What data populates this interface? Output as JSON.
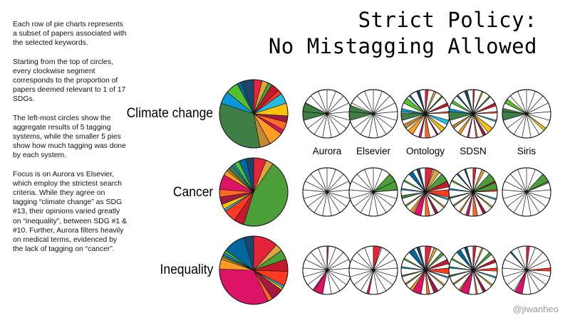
{
  "title_lines": [
    "Strict Policy:",
    "No Mistagging Allowed"
  ],
  "description": [
    "Each row of pie charts represents a subset of papers associated with the selected keywords.",
    "Starting from the top of circles, every clockwise segment corresponds to the proportion of papers deemed relevant to 1 of 17 SDGs.",
    "The left-most circles show the aggregate results of 5 tagging systems, while the smaller 5 pies show how much tagging was done by each system.",
    "Focus is on Aurora vs Elsevier, which employ the strictest search criteria.  While they agree on tagging “climate change” as SDG #13, their opinions varied greatly on “inequality”, between SDG #1 & #10. Further, Aurora filters heavily on medical terms, evidenced by the lack of tagging on “cancer”."
  ],
  "credit": "@jiwanheo",
  "chart_data": {
    "type": "pie",
    "sdgs": [
      1,
      2,
      3,
      4,
      5,
      6,
      7,
      8,
      9,
      10,
      11,
      12,
      13,
      14,
      15,
      16,
      17
    ],
    "sdg_colors": [
      "#e5243b",
      "#dda63a",
      "#4c9f38",
      "#c5192d",
      "#ff3a21",
      "#26bde2",
      "#fcc30b",
      "#a21942",
      "#fd6925",
      "#dd1367",
      "#fd9d24",
      "#bf8b2e",
      "#3f7e44",
      "#0a97d9",
      "#56c02b",
      "#00689d",
      "#19486a"
    ],
    "systems": [
      "Aurora",
      "Elsevier",
      "Ontology",
      "SDSN",
      "Siris"
    ],
    "rows": [
      {
        "keyword": "Climate change",
        "aggregate": [
          0.04,
          0.03,
          0.02,
          0.04,
          0.02,
          0.05,
          0.06,
          0.03,
          0.04,
          0.02,
          0.07,
          0.05,
          0.33,
          0.06,
          0.06,
          0.02,
          0.06
        ],
        "by_system": {
          "Aurora": [
            0,
            0,
            0,
            0,
            0,
            0,
            0,
            0,
            0,
            0,
            0,
            0,
            0.12,
            0,
            0,
            0,
            0
          ],
          "Elsevier": [
            0,
            0,
            0,
            0,
            0,
            0,
            0,
            0,
            0,
            0,
            0,
            0,
            0.1,
            0,
            0,
            0,
            0
          ],
          "Ontology": [
            0.02,
            0.015,
            0.01,
            0.02,
            0.01,
            0.03,
            0.03,
            0.01,
            0.03,
            0.015,
            0.04,
            0.03,
            0.05,
            0.02,
            0.04,
            0.01,
            0.02
          ],
          "SDSN": [
            0.01,
            0.01,
            0.01,
            0.02,
            0.01,
            0.01,
            0.04,
            0.02,
            0.01,
            0.01,
            0.02,
            0.02,
            0.06,
            0.02,
            0.02,
            0.01,
            0.02
          ],
          "Siris": [
            0,
            0,
            0,
            0,
            0,
            0,
            0.02,
            0,
            0,
            0,
            0,
            0,
            0.08,
            0,
            0.03,
            0,
            0
          ]
        }
      },
      {
        "keyword": "Cancer",
        "aggregate": [
          0.05,
          0.03,
          0.38,
          0.04,
          0.05,
          0.01,
          0.02,
          0.03,
          0.03,
          0.06,
          0.02,
          0.01,
          0.02,
          0.01,
          0.02,
          0.03,
          0.03
        ],
        "by_system": {
          "Aurora": [
            0,
            0,
            0,
            0,
            0,
            0,
            0,
            0,
            0,
            0,
            0,
            0,
            0,
            0,
            0,
            0,
            0
          ],
          "Elsevier": [
            0,
            0,
            0.12,
            0,
            0,
            0,
            0,
            0,
            0,
            0,
            0,
            0,
            0,
            0,
            0,
            0,
            0
          ],
          "Ontology": [
            0.05,
            0.04,
            0.09,
            0.04,
            0.05,
            0.01,
            0.01,
            0.02,
            0.03,
            0.05,
            0.02,
            0.01,
            0.02,
            0.01,
            0.01,
            0.03,
            0.02
          ],
          "SDSN": [
            0.02,
            0.02,
            0.12,
            0.01,
            0.01,
            0.01,
            0.01,
            0.02,
            0.03,
            0.02,
            0.01,
            0.01,
            0.01,
            0.01,
            0.01,
            0.01,
            0.01
          ],
          "Siris": [
            0,
            0,
            0.07,
            0,
            0,
            0,
            0,
            0,
            0,
            0,
            0,
            0,
            0,
            0,
            0,
            0,
            0
          ]
        }
      },
      {
        "keyword": "Inequality",
        "aggregate": [
          0.1,
          0.03,
          0.04,
          0.05,
          0.06,
          0.01,
          0.01,
          0.05,
          0.02,
          0.28,
          0.04,
          0.01,
          0.01,
          0.01,
          0.01,
          0.09,
          0.04
        ],
        "by_system": {
          "Aurora": [
            0.01,
            0,
            0,
            0,
            0,
            0,
            0,
            0,
            0,
            0.07,
            0,
            0,
            0,
            0,
            0,
            0,
            0
          ],
          "Elsevier": [
            0.05,
            0,
            0,
            0,
            0,
            0,
            0,
            0,
            0,
            0.015,
            0,
            0,
            0,
            0,
            0,
            0,
            0
          ],
          "Ontology": [
            0.04,
            0.02,
            0.02,
            0.03,
            0.04,
            0.01,
            0.01,
            0.03,
            0.02,
            0.08,
            0.02,
            0.01,
            0.01,
            0.01,
            0.01,
            0.04,
            0.02
          ],
          "SDSN": [
            0.02,
            0.01,
            0.02,
            0.02,
            0.02,
            0.01,
            0.01,
            0.02,
            0.01,
            0.07,
            0.01,
            0.01,
            0.01,
            0.01,
            0.01,
            0.03,
            0.02
          ],
          "Siris": [
            0.02,
            0,
            0,
            0,
            0.02,
            0,
            0,
            0,
            0,
            0.05,
            0,
            0,
            0,
            0,
            0,
            0.01,
            0
          ]
        }
      }
    ]
  }
}
